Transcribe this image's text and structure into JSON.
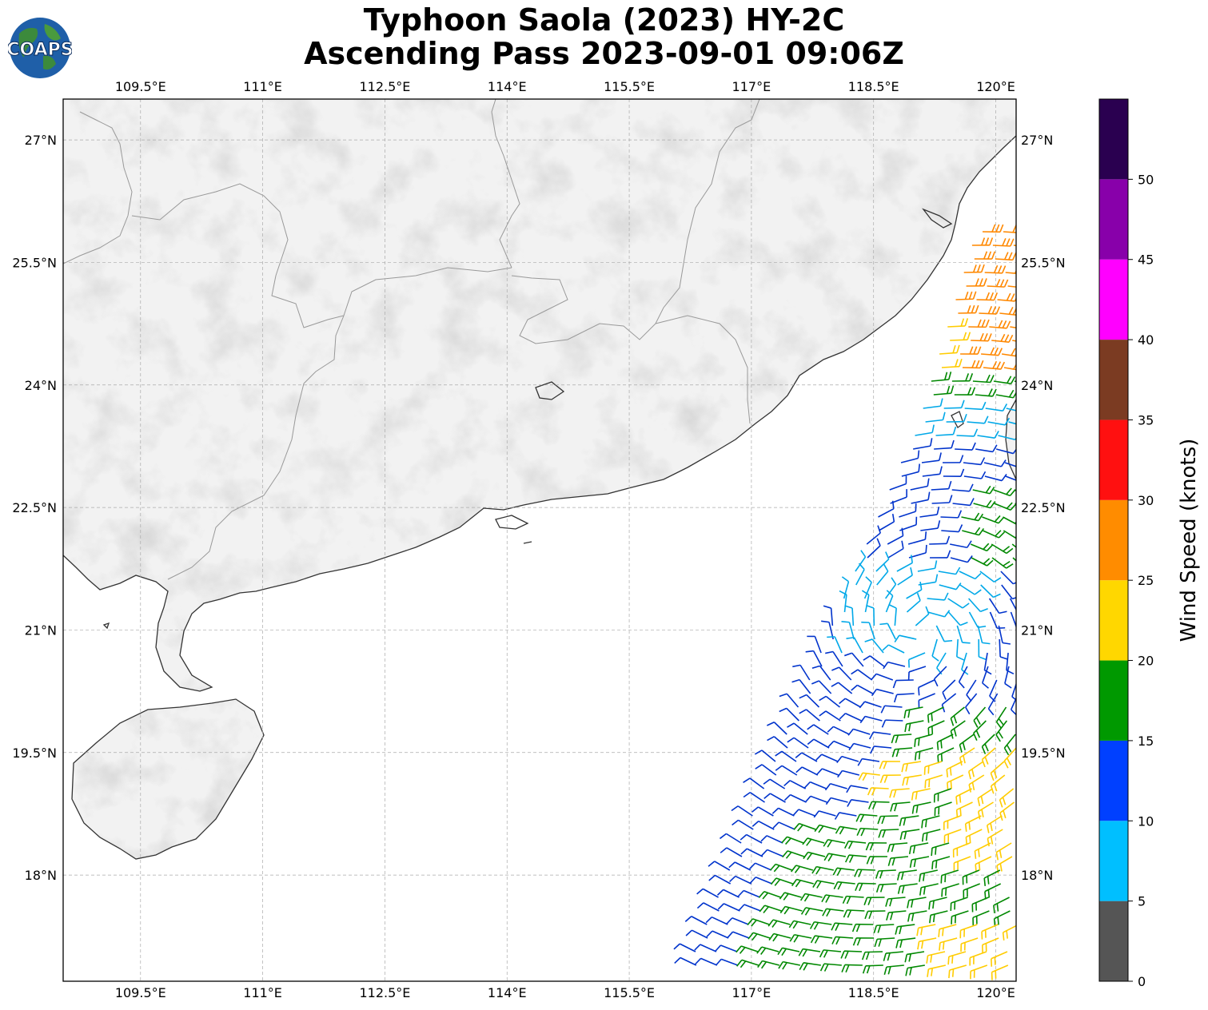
{
  "title": {
    "line1": "Typhoon Saola (2023) HY-2C",
    "line2": "Ascending Pass 2023-09-01 09:06Z"
  },
  "logo": {
    "text": "COAPS",
    "icon": "globe-icon"
  },
  "map": {
    "lon_range": [
      108.55,
      120.25
    ],
    "lat_range": [
      16.7,
      27.5
    ],
    "lon_ticks": [
      {
        "value": 109.5,
        "label": "109.5°E"
      },
      {
        "value": 111.0,
        "label": "111°E"
      },
      {
        "value": 112.5,
        "label": "112.5°E"
      },
      {
        "value": 114.0,
        "label": "114°E"
      },
      {
        "value": 115.5,
        "label": "115.5°E"
      },
      {
        "value": 117.0,
        "label": "117°E"
      },
      {
        "value": 118.5,
        "label": "118.5°E"
      },
      {
        "value": 120.0,
        "label": "120°E"
      }
    ],
    "lat_ticks": [
      {
        "value": 27.0,
        "label": "27°N"
      },
      {
        "value": 25.5,
        "label": "25.5°N"
      },
      {
        "value": 24.0,
        "label": "24°N"
      },
      {
        "value": 22.5,
        "label": "22.5°N"
      },
      {
        "value": 21.0,
        "label": "21°N"
      },
      {
        "value": 19.5,
        "label": "19.5°N"
      },
      {
        "value": 18.0,
        "label": "18°N"
      }
    ],
    "gridlines": true
  },
  "colorbar": {
    "label": "Wind Speed (knots)",
    "ticks": [
      "0",
      "5",
      "10",
      "15",
      "20",
      "25",
      "30",
      "35",
      "40",
      "45",
      "50"
    ],
    "bins": [
      {
        "min": 0,
        "max": 5,
        "color": "#555555"
      },
      {
        "min": 5,
        "max": 10,
        "color": "#00bfff"
      },
      {
        "min": 10,
        "max": 15,
        "color": "#0040ff"
      },
      {
        "min": 15,
        "max": 20,
        "color": "#009900"
      },
      {
        "min": 20,
        "max": 25,
        "color": "#ffd700"
      },
      {
        "min": 25,
        "max": 30,
        "color": "#ff8c00"
      },
      {
        "min": 30,
        "max": 35,
        "color": "#ff1010"
      },
      {
        "min": 35,
        "max": 40,
        "color": "#7b3b22"
      },
      {
        "min": 40,
        "max": 45,
        "color": "#ff00ff"
      },
      {
        "min": 45,
        "max": 50,
        "color": "#8800aa"
      },
      {
        "min": 50,
        "max": 55,
        "color": "#2a0050"
      }
    ]
  },
  "colors": {
    "land": "#f2f2f2",
    "coast": "#333333",
    "border": "#999999",
    "grid": "#aaaaaa",
    "barb_calm": "#555555",
    "barb_5_10": "#00a8e8",
    "barb_10_15": "#0033cc",
    "barb_15_20": "#008800",
    "barb_20_25": "#ffcc00",
    "barb_25_30": "#ff8800"
  }
}
